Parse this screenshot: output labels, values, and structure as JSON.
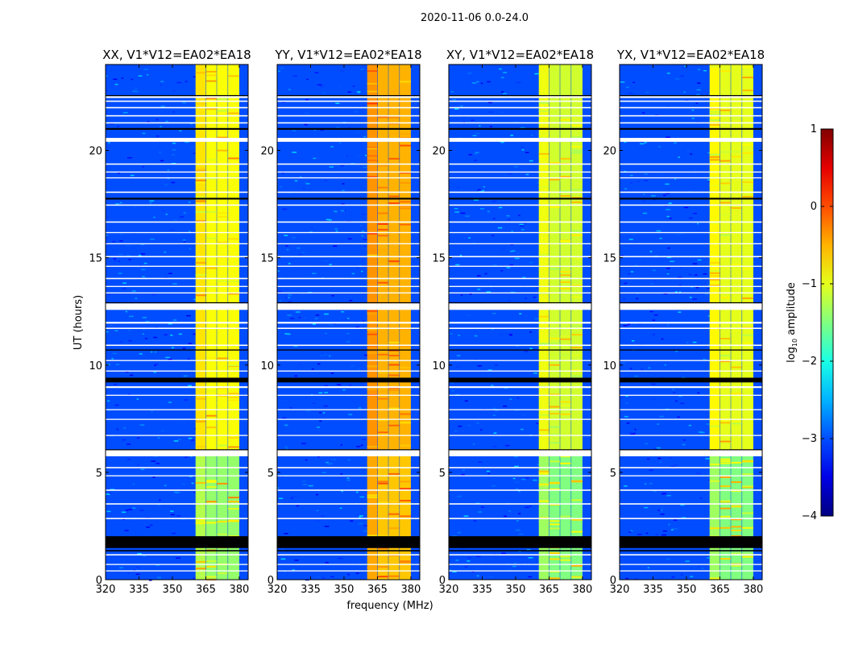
{
  "chart_data": {
    "type": "heatmap",
    "suptitle": "2020-11-06 0.0-24.0",
    "xlabel": "frequency (MHz)",
    "ylabel": "UT (hours)",
    "xlim": [
      320,
      384
    ],
    "ylim": [
      0,
      24
    ],
    "xticks": [
      320,
      335,
      350,
      365,
      380
    ],
    "yticks": [
      0,
      5,
      10,
      15,
      20
    ],
    "colormap": "jet",
    "colorbar": {
      "label": "log10 amplitude",
      "label_main": "log",
      "label_sub": "10",
      "label_rest": " amplitude",
      "range": [
        -4,
        1
      ],
      "ticks": [
        1,
        0,
        -1,
        -2,
        -3,
        -4
      ],
      "tick_labels": [
        "1",
        "0",
        "−1",
        "−2",
        "−3",
        "−4"
      ]
    },
    "background_level": -3.0,
    "subbands_mhz": [
      [
        360.4,
        365.0
      ],
      [
        365.2,
        369.8
      ],
      [
        370.0,
        374.8
      ],
      [
        375.0,
        380.0
      ]
    ],
    "flagged_white_hours": [
      [
        22.48,
        0.08
      ],
      [
        22.29,
        0.06
      ],
      [
        21.99,
        0.06
      ],
      [
        21.61,
        0.06
      ],
      [
        21.28,
        0.06
      ],
      [
        20.49,
        0.18
      ],
      [
        19.36,
        0.06
      ],
      [
        18.99,
        0.05
      ],
      [
        18.72,
        0.05
      ],
      [
        18.05,
        0.06
      ],
      [
        17.45,
        0.06
      ],
      [
        16.66,
        0.06
      ],
      [
        16.17,
        0.05
      ],
      [
        15.65,
        0.05
      ],
      [
        15.05,
        0.06
      ],
      [
        14.6,
        0.05
      ],
      [
        14.03,
        0.06
      ],
      [
        13.66,
        0.05
      ],
      [
        13.36,
        0.05
      ],
      [
        12.72,
        0.3
      ],
      [
        11.97,
        0.08
      ],
      [
        11.71,
        0.06
      ],
      [
        10.92,
        0.06
      ],
      [
        10.21,
        0.05
      ],
      [
        9.72,
        0.05
      ],
      [
        8.97,
        0.08
      ],
      [
        8.59,
        0.05
      ],
      [
        7.92,
        0.05
      ],
      [
        7.47,
        0.05
      ],
      [
        6.72,
        0.05
      ],
      [
        5.89,
        0.28
      ],
      [
        5.22,
        0.06
      ],
      [
        4.84,
        0.05
      ],
      [
        4.17,
        0.06
      ],
      [
        3.53,
        0.06
      ],
      [
        2.85,
        0.06
      ],
      [
        1.16,
        0.06
      ],
      [
        0.71,
        0.05
      ],
      [
        0.41,
        0.05
      ]
    ],
    "flagged_black_hours": [
      [
        22.55,
        0.05
      ],
      [
        21.0,
        0.08
      ],
      [
        17.75,
        0.08
      ],
      [
        12.9,
        0.05
      ],
      [
        10.7,
        0.05
      ],
      [
        9.3,
        0.22
      ],
      [
        6.05,
        0.05
      ],
      [
        1.75,
        0.55
      ],
      [
        1.35,
        0.06
      ]
    ],
    "panels": [
      {
        "title": "XX, V1*V12=EA02*EA18",
        "band_level": -0.9,
        "band_level_low": -1.4
      },
      {
        "title": "YY, V1*V12=EA02*EA18",
        "band_level": -0.5,
        "band_level_low": -0.6
      },
      {
        "title": "XY, V1*V12=EA02*EA18",
        "band_level": -1.1,
        "band_level_low": -1.5
      },
      {
        "title": "YX, V1*V12=EA02*EA18",
        "band_level": -1.0,
        "band_level_low": -1.5
      }
    ]
  }
}
